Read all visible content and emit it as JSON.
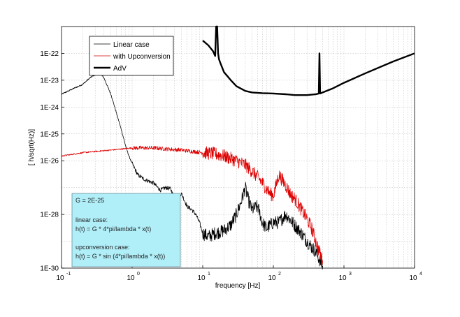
{
  "chart_data": {
    "type": "line",
    "xscale": "log",
    "yscale": "log",
    "xlim": [
      0.1,
      10000
    ],
    "ylim": [
      1e-30,
      1e-21
    ],
    "xlabel": "frequency [Hz]",
    "ylabel": "[ h/sqrt(Hz)]",
    "x_ticks": [
      {
        "base": "10",
        "exp": "-1"
      },
      {
        "base": "10",
        "exp": "0"
      },
      {
        "base": "10",
        "exp": "1"
      },
      {
        "base": "10",
        "exp": "2"
      },
      {
        "base": "10",
        "exp": "3"
      },
      {
        "base": "10",
        "exp": "4"
      }
    ],
    "y_ticks": [
      {
        "value": 1e-22,
        "label": "1E-22"
      },
      {
        "value": 1e-23,
        "label": "1E-23"
      },
      {
        "value": 1e-24,
        "label": "1E-24"
      },
      {
        "value": 1e-25,
        "label": "1E-25"
      },
      {
        "value": 1e-26,
        "label": "1E-26"
      },
      {
        "value": 1e-28,
        "label": "1E-28"
      },
      {
        "value": 1e-30,
        "label": "1E-30"
      }
    ],
    "grid": true,
    "legend_position": "top-left",
    "series": [
      {
        "name": "Linear case",
        "color": "#000000",
        "width": 0.8,
        "noise": true,
        "x": [
          0.1,
          0.15,
          0.2,
          0.25,
          0.3,
          0.35,
          0.4,
          0.5,
          0.6,
          0.7,
          0.8,
          0.9,
          1.0,
          1.2,
          1.5,
          2,
          2.5,
          3,
          3.5,
          4,
          4.5,
          5,
          6,
          7,
          8,
          9,
          10,
          12,
          15,
          20,
          25,
          30,
          35,
          40,
          45,
          50,
          60,
          70,
          80,
          90,
          100,
          120,
          150,
          200,
          250,
          300,
          350,
          400,
          450,
          500
        ],
        "y": [
          3e-24,
          5e-24,
          7e-24,
          1.2e-23,
          1.6e-23,
          1.8e-23,
          1.2e-23,
          3e-24,
          6e-25,
          1.5e-25,
          4e-26,
          1.5e-26,
          8e-27,
          3e-27,
          2e-27,
          1.5e-27,
          8e-28,
          1e-27,
          9e-28,
          4e-28,
          5e-28,
          6e-28,
          2e-28,
          1.5e-28,
          1e-28,
          5e-29,
          2e-29,
          1.5e-29,
          2e-29,
          2.5e-29,
          4e-29,
          1e-28,
          3e-28,
          1e-27,
          3e-28,
          1.5e-28,
          2e-28,
          5e-29,
          3e-29,
          4e-29,
          5e-29,
          5e-29,
          1e-28,
          4e-29,
          2e-29,
          1e-29,
          6e-30,
          4e-30,
          2e-30,
          1.2e-30
        ]
      },
      {
        "name": "with Upconversion",
        "color": "#dd0000",
        "width": 0.8,
        "noise": true,
        "x": [
          0.1,
          0.2,
          0.5,
          1,
          2,
          5,
          10,
          15,
          20,
          25,
          30,
          40,
          50,
          60,
          70,
          80,
          90,
          100,
          120,
          150,
          180,
          200,
          250,
          300,
          350,
          400,
          450,
          500
        ],
        "y": [
          1.5e-26,
          2e-26,
          2.5e-26,
          3e-26,
          3e-26,
          2.5e-26,
          2e-26,
          1.8e-26,
          1.5e-26,
          1.2e-26,
          1e-26,
          7e-27,
          4e-27,
          2.5e-27,
          1.5e-27,
          9e-28,
          6e-28,
          5e-28,
          3e-27,
          1.2e-27,
          5e-28,
          4e-28,
          1.5e-28,
          7e-29,
          3e-29,
          1e-29,
          4e-30,
          2e-30
        ]
      },
      {
        "name": "AdV",
        "color": "#000000",
        "width": 2.4,
        "noise": false,
        "x": [
          10,
          12,
          14,
          15,
          15.5,
          16,
          16.5,
          17,
          18,
          20,
          25,
          30,
          40,
          50,
          70,
          100,
          150,
          200,
          300,
          400,
          440,
          450,
          460,
          500,
          700,
          1000,
          2000,
          5000,
          10000
        ],
        "y": [
          3e-22,
          2e-22,
          1.2e-22,
          8e-23,
          1e-21,
          1e-21,
          1e-22,
          6e-23,
          4e-23,
          2e-23,
          1e-23,
          6e-24,
          4e-24,
          3.5e-24,
          3.3e-24,
          3.2e-24,
          3e-24,
          2.8e-24,
          2.8e-24,
          3e-24,
          3.2e-24,
          1e-22,
          3.2e-24,
          3.5e-24,
          5e-24,
          8e-24,
          1.8e-23,
          5e-23,
          1e-22
        ]
      }
    ],
    "annotation": {
      "lines": [
        "G = 2E-25",
        "",
        "linear case:",
        "h(t) = G * 4*pi/lambda * x(t)",
        "",
        "upconversion case:",
        "h(t) = G * sin (4*pi/lambda * x(t))"
      ],
      "background": "#b0eef8"
    }
  }
}
